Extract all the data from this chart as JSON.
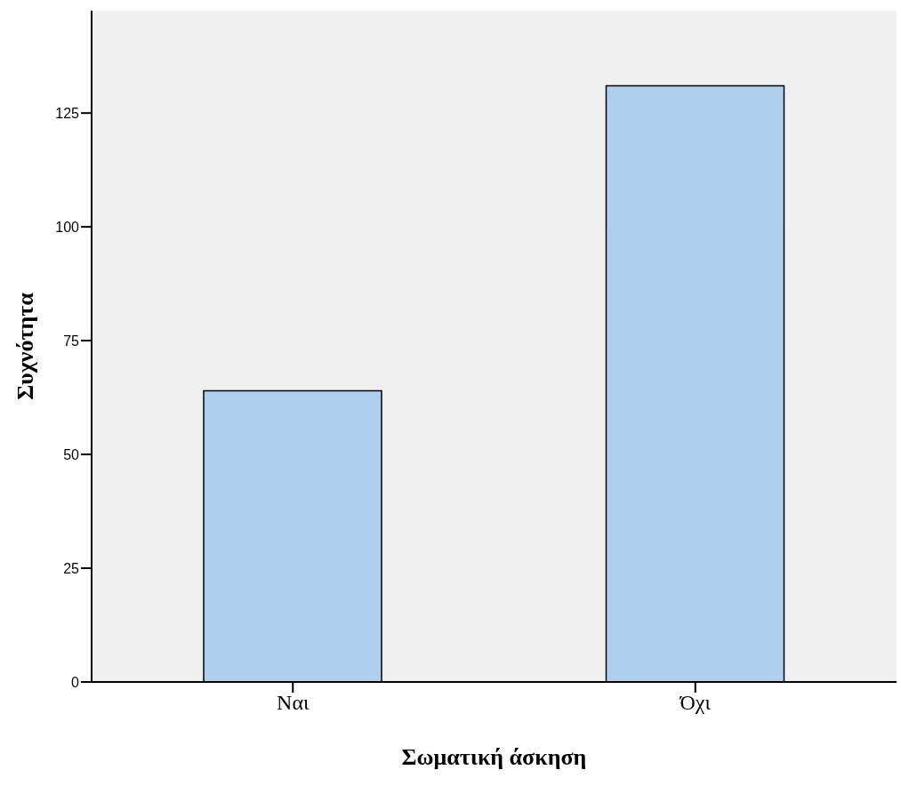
{
  "chart_data": {
    "type": "bar",
    "xlabel": "Σωματική άσκηση",
    "ylabel": "Συχνότητα",
    "categories": [
      "Ναι",
      "Όχι"
    ],
    "values": [
      64,
      131
    ],
    "color": "#aed0ee",
    "ylim": [
      0,
      147.5
    ],
    "yticks": [
      0,
      25,
      50,
      75,
      100,
      125
    ],
    "grid": false
  }
}
